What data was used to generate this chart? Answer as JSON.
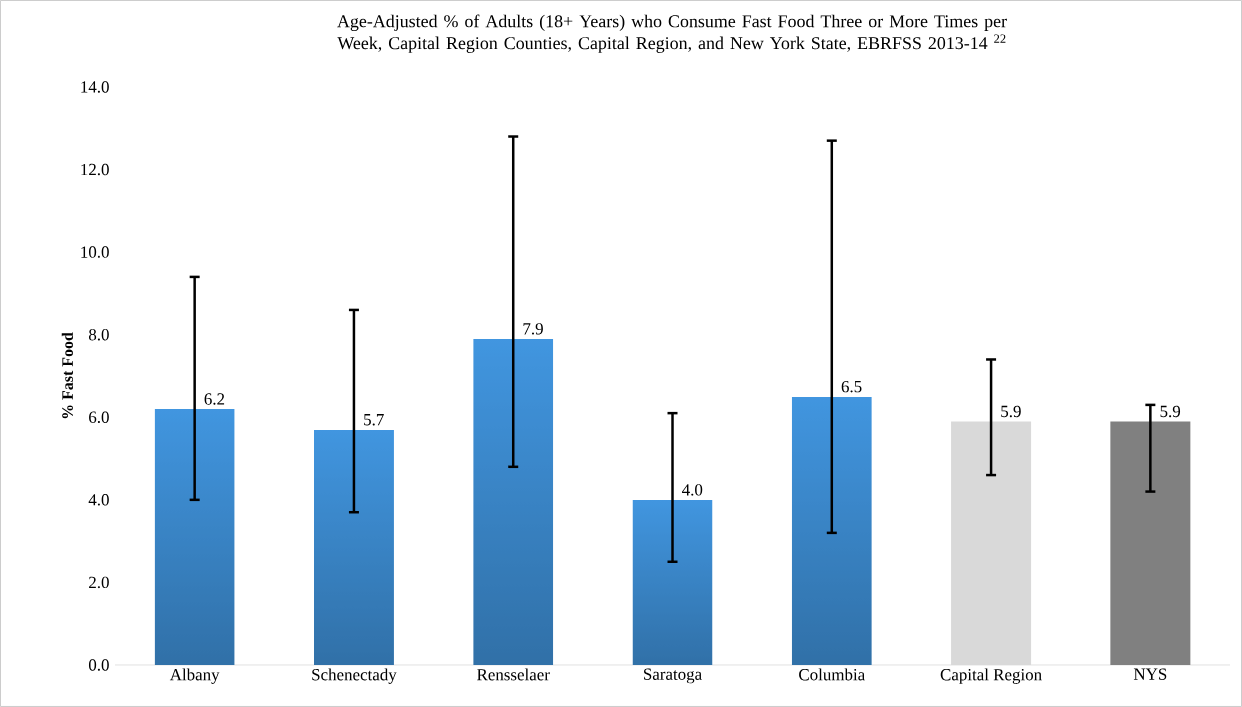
{
  "chart_data": {
    "type": "bar",
    "title": "Age-Adjusted % of Adults (18+ Years) who Consume Fast Food Three or More Times per Week, Capital Region Counties, Capital Region, and New York State, EBRFSS 2013-14 $^{22}$",
    "ylabel": "% Fast Food",
    "categories": [
      "Albany",
      "Schenectady",
      "Rensselaer",
      "Saratoga",
      "Columbia",
      "Capital Region",
      "NYS"
    ],
    "values": [
      6.2,
      5.7,
      7.9,
      4.0,
      6.5,
      5.9,
      5.9
    ],
    "value_labels": [
      "6.2",
      "5.7",
      "7.9",
      "4.0",
      "6.5",
      "5.9",
      "5.9"
    ],
    "errors": [
      [
        4.0,
        9.4
      ],
      [
        3.7,
        8.6
      ],
      [
        4.8,
        12.8
      ],
      [
        2.5,
        6.1
      ],
      [
        3.2,
        12.7
      ],
      [
        4.6,
        7.4
      ],
      [
        4.2,
        6.3
      ]
    ],
    "colors": [
      "#4196e0",
      "#4196e0",
      "#4196e0",
      "#4196e0",
      "#4196e0",
      "#d9d9d9",
      "#808080"
    ],
    "ylim": [
      0,
      14
    ],
    "yticks": [
      {
        "value": 0,
        "label": "0.0"
      },
      {
        "value": 2,
        "label": "2.0"
      },
      {
        "value": 4,
        "label": "4.0"
      },
      {
        "value": 6,
        "label": "6.0"
      },
      {
        "value": 8,
        "label": "8.0"
      },
      {
        "value": 10,
        "label": "10.0"
      },
      {
        "value": 12,
        "label": "12.0"
      },
      {
        "value": 14,
        "label": "14.0"
      }
    ],
    "grid": false
  }
}
